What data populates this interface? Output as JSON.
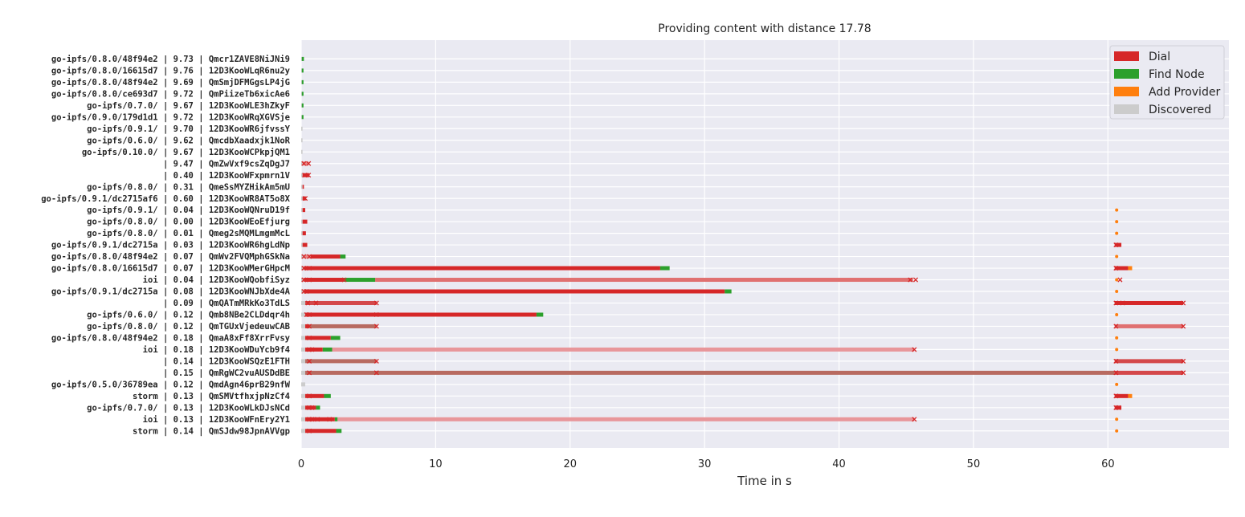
{
  "chart_data": {
    "type": "bar",
    "title": "Providing content with distance 17.78",
    "xlabel": "Time in s",
    "xlim": [
      0,
      69
    ],
    "xticks": [
      0,
      10,
      20,
      30,
      40,
      50,
      60
    ],
    "grid": true,
    "legend_position": "top-right",
    "legend": [
      {
        "label": "Dial",
        "color": "#d62728"
      },
      {
        "label": "Find Node",
        "color": "#2ca02c"
      },
      {
        "label": "Add Provider",
        "color": "#ff7f0e"
      },
      {
        "label": "Discovered",
        "color": "#cccccc"
      }
    ],
    "rows": [
      {
        "label": "go-ipfs/0.8.0/48f94e2 | 9.73 | Qmcr1ZAVE8NiJNi9",
        "discovered": [
          0.0,
          0.05
        ],
        "dials": [],
        "find_node": [
          [
            0.05,
            0.2
          ]
        ],
        "dial_fail": [],
        "add_provider": []
      },
      {
        "label": "go-ipfs/0.8.0/16615d7 | 9.76 | 12D3KooWLqR6nu2y",
        "discovered": [
          0.0,
          0.05
        ],
        "dials": [],
        "find_node": [
          [
            0.05,
            0.15
          ]
        ],
        "dial_fail": [],
        "add_provider": []
      },
      {
        "label": "go-ipfs/0.8.0/48f94e2 | 9.69 | QmSmjDFMGgsLP4jG",
        "discovered": [
          0.0,
          0.05
        ],
        "dials": [],
        "find_node": [
          [
            0.05,
            0.15
          ]
        ],
        "dial_fail": [],
        "add_provider": []
      },
      {
        "label": "go-ipfs/0.8.0/ce693d7 | 9.72 | QmPiizeTb6xicAe6",
        "discovered": [
          0.0,
          0.05
        ],
        "dials": [],
        "find_node": [
          [
            0.05,
            0.12
          ]
        ],
        "dial_fail": [],
        "add_provider": []
      },
      {
        "label": "go-ipfs/0.7.0/ | 9.67 | 12D3KooWLE3hZkyF",
        "discovered": [
          0.0,
          0.05
        ],
        "dials": [],
        "find_node": [
          [
            0.05,
            0.12
          ]
        ],
        "dial_fail": [],
        "add_provider": []
      },
      {
        "label": "go-ipfs/0.9.0/179d1d1 | 9.72 | 12D3KooWRqXGVSje",
        "discovered": [
          0.0,
          0.05
        ],
        "dials": [],
        "find_node": [
          [
            0.05,
            0.12
          ]
        ],
        "dial_fail": [],
        "add_provider": []
      },
      {
        "label": "go-ipfs/0.9.1/ | 9.70 | 12D3KooWR6jfvssY",
        "discovered": [
          0.0,
          0.1
        ],
        "dials": [],
        "find_node": [],
        "dial_fail": [],
        "add_provider": []
      },
      {
        "label": "go-ipfs/0.6.0/ | 9.62 | QmcdbXaadxjk1NoR",
        "discovered": [
          0.0,
          0.1
        ],
        "dials": [],
        "find_node": [],
        "dial_fail": [],
        "add_provider": []
      },
      {
        "label": "go-ipfs/0.10.0/ | 9.67 | 12D3KooWCPkpjQM1",
        "discovered": [
          0.0,
          0.1
        ],
        "dials": [],
        "find_node": [],
        "dial_fail": [],
        "add_provider": []
      },
      {
        "label": " | 9.47 | QmZwVxf9csZqDgJ7",
        "discovered": [
          0.0,
          0.1
        ],
        "dials": [
          [
            0.1,
            0.3,
            "#e88a8a"
          ],
          [
            0.3,
            0.55,
            "#e88a8a"
          ]
        ],
        "find_node": [],
        "dial_fail": [
          0.2,
          0.55
        ],
        "add_provider": []
      },
      {
        "label": " | 0.40 | 12D3KooWFxpmrn1V",
        "discovered": [
          0.0,
          0.1
        ],
        "dials": [
          [
            0.1,
            0.6,
            "#d62728"
          ]
        ],
        "find_node": [],
        "dial_fail": [
          0.25,
          0.55
        ],
        "add_provider": []
      },
      {
        "label": "go-ipfs/0.8.0/ | 0.31 | QmeSsMYZHikAm5mU",
        "discovered": [
          0.0,
          0.1
        ],
        "dials": [
          [
            0.1,
            0.2,
            "#d62728"
          ]
        ],
        "find_node": [],
        "dial_fail": [],
        "add_provider": []
      },
      {
        "label": "go-ipfs/0.9.1/dc2715af6 | 0.60 | 12D3KooWR8AT5o8X",
        "discovered": [
          0.0,
          0.1
        ],
        "dials": [
          [
            0.1,
            0.35,
            "#d62728"
          ]
        ],
        "find_node": [],
        "dial_fail": [
          0.3
        ],
        "add_provider": []
      },
      {
        "label": "go-ipfs/0.9.1/ | 0.04 | 12D3KooWQNruD19f",
        "discovered": [
          0.0,
          0.1
        ],
        "dials": [
          [
            0.1,
            0.3,
            "#d62728"
          ]
        ],
        "find_node": [],
        "dial_fail": [],
        "add_provider": [
          [
            60.6,
            60.7
          ]
        ]
      },
      {
        "label": "go-ipfs/0.8.0/ | 0.00 | 12D3KooWEoEfjurg",
        "discovered": [
          0.0,
          0.1
        ],
        "dials": [
          [
            0.1,
            0.45,
            "#d62728"
          ]
        ],
        "find_node": [],
        "dial_fail": [],
        "add_provider": [
          [
            60.6,
            60.7
          ]
        ]
      },
      {
        "label": "go-ipfs/0.8.0/ | 0.01 | Qmeg2sMQMLmgmMcL",
        "discovered": [
          0.0,
          0.1
        ],
        "dials": [
          [
            0.1,
            0.35,
            "#d62728"
          ]
        ],
        "find_node": [],
        "dial_fail": [],
        "add_provider": [
          [
            60.6,
            60.7
          ]
        ]
      },
      {
        "label": "go-ipfs/0.9.1/dc2715a | 0.03 | 12D3KooWR6hgLdNp",
        "discovered": [
          0.0,
          0.1
        ],
        "dials": [
          [
            0.1,
            0.45,
            "#d62728"
          ],
          [
            60.5,
            61.0,
            "#d62728"
          ]
        ],
        "find_node": [],
        "dial_fail": [
          60.6
        ],
        "add_provider": []
      },
      {
        "label": "go-ipfs/0.8.0/48f94e2 | 0.07 | QmWv2FVQMphGSkNa",
        "discovered": [
          0.0,
          0.2
        ],
        "dials": [
          [
            0.2,
            0.7,
            "#e88a8a"
          ],
          [
            0.7,
            2.9,
            "#d62728"
          ]
        ],
        "find_node": [
          [
            2.9,
            3.3
          ]
        ],
        "dial_fail": [
          0.2,
          0.6
        ],
        "add_provider": [
          [
            60.6,
            60.7
          ]
        ]
      },
      {
        "label": "go-ipfs/0.8.0/16615d7 | 0.07 | 12D3KooWMerGHpcM",
        "discovered": [
          0.0,
          0.2
        ],
        "dials": [
          [
            0.2,
            26.7,
            "#d62728"
          ],
          [
            60.5,
            61.5,
            "#d62728"
          ]
        ],
        "find_node": [
          [
            26.7,
            27.4
          ]
        ],
        "dial_fail": [
          0.2,
          0.6,
          60.6
        ],
        "add_provider": [
          [
            61.5,
            61.8
          ]
        ]
      },
      {
        "label": "ioi | 0.04 | 12D3KooWQobfiSyz",
        "discovered": [
          0.0,
          0.2
        ],
        "dials": [
          [
            0.2,
            3.2,
            "#d62728"
          ],
          [
            5.5,
            45.5,
            "#e07070"
          ]
        ],
        "find_node": [
          [
            3.2,
            5.5
          ]
        ],
        "dial_fail": [
          0.2,
          0.6,
          3.2,
          45.3,
          45.7,
          60.9
        ],
        "add_provider": [
          [
            60.6,
            60.7
          ]
        ]
      },
      {
        "label": "go-ipfs/0.9.1/dc2715a | 0.08 | 12D3KooWNJbXde4A",
        "discovered": [
          0.0,
          0.2
        ],
        "dials": [
          [
            0.2,
            31.5,
            "#d62728"
          ]
        ],
        "find_node": [
          [
            31.5,
            32.0
          ]
        ],
        "dial_fail": [
          0.2,
          0.4
        ],
        "add_provider": [
          [
            60.6,
            60.7
          ]
        ]
      },
      {
        "label": " | 0.09 | QmQATmMRkKo3TdLS",
        "discovered": [
          0.0,
          0.3
        ],
        "dials": [
          [
            0.3,
            5.6,
            "#d4484a"
          ],
          [
            60.5,
            65.6,
            "#d62728"
          ]
        ],
        "find_node": [],
        "dial_fail": [
          0.5,
          1.1,
          5.6,
          60.6,
          61.1,
          65.6
        ],
        "add_provider": []
      },
      {
        "label": "go-ipfs/0.6.0/ | 0.12 | Qmb8NBe2CLDdqr4h",
        "discovered": [
          0.0,
          0.3
        ],
        "dials": [
          [
            0.3,
            17.5,
            "#d62728"
          ]
        ],
        "find_node": [
          [
            17.5,
            18.0
          ]
        ],
        "dial_fail": [
          0.4,
          0.6,
          5.6
        ],
        "add_provider": [
          [
            60.6,
            60.7
          ]
        ]
      },
      {
        "label": "go-ipfs/0.8.0/ | 0.12 | QmTGUxVjedeuwCAB",
        "discovered": [
          0.0,
          0.3
        ],
        "dials": [
          [
            0.3,
            0.6,
            "#d62728"
          ],
          [
            0.6,
            5.6,
            "#b86a60"
          ],
          [
            60.5,
            65.6,
            "#e07070"
          ]
        ],
        "find_node": [],
        "dial_fail": [
          0.6,
          5.6,
          60.6,
          65.6
        ],
        "add_provider": []
      },
      {
        "label": "go-ipfs/0.8.0/48f94e2 | 0.18 | QmaA8xFf8XrrFvsy",
        "discovered": [
          0.0,
          0.3
        ],
        "dials": [
          [
            0.3,
            2.2,
            "#d62728"
          ]
        ],
        "find_node": [
          [
            2.2,
            2.9
          ]
        ],
        "dial_fail": [
          0.6
        ],
        "add_provider": [
          [
            60.6,
            60.7
          ]
        ]
      },
      {
        "label": "ioi | 0.18 | 12D3KooWDuYcb9f4",
        "discovered": [
          0.0,
          0.3
        ],
        "dials": [
          [
            0.3,
            1.6,
            "#d62728"
          ],
          [
            2.3,
            45.6,
            "#e8969a"
          ]
        ],
        "find_node": [
          [
            1.6,
            2.3
          ]
        ],
        "dial_fail": [
          0.6,
          0.8,
          45.6
        ],
        "add_provider": [
          [
            60.6,
            60.7
          ]
        ]
      },
      {
        "label": " | 0.14 | 12D3KooWSQzE1FTH",
        "discovered": [
          0.0,
          0.3
        ],
        "dials": [
          [
            0.3,
            5.6,
            "#b86a60"
          ],
          [
            60.5,
            65.6,
            "#d4484a"
          ]
        ],
        "find_node": [],
        "dial_fail": [
          0.6,
          5.6,
          60.6,
          65.6
        ],
        "add_provider": []
      },
      {
        "label": " | 0.15 | QmRgWC2vuAUSDdBE",
        "discovered": [
          0.0,
          0.3
        ],
        "dials": [
          [
            0.3,
            60.5,
            "#b86a60"
          ],
          [
            60.5,
            65.6,
            "#d4484a"
          ]
        ],
        "find_node": [],
        "dial_fail": [
          0.6,
          5.6,
          60.6,
          65.6
        ],
        "add_provider": []
      },
      {
        "label": "go-ipfs/0.5.0/36789ea | 0.12 | QmdAgn46prB29nfW",
        "discovered": [
          0.0,
          0.3
        ],
        "dials": [],
        "find_node": [],
        "dial_fail": [],
        "add_provider": [
          [
            60.6,
            60.7
          ]
        ]
      },
      {
        "label": "storm | 0.13 | QmSMVtfhxjpNzCf4",
        "discovered": [
          0.0,
          0.3
        ],
        "dials": [
          [
            0.3,
            1.7,
            "#d62728"
          ],
          [
            60.5,
            61.5,
            "#d62728"
          ]
        ],
        "find_node": [
          [
            1.7,
            2.2
          ]
        ],
        "dial_fail": [
          0.6,
          60.6
        ],
        "add_provider": [
          [
            61.5,
            61.8
          ]
        ]
      },
      {
        "label": "go-ipfs/0.7.0/ | 0.13 | 12D3KooWLkDJsNCd",
        "discovered": [
          0.0,
          0.3
        ],
        "dials": [
          [
            0.3,
            1.1,
            "#d62728"
          ],
          [
            60.5,
            61.0,
            "#d62728"
          ]
        ],
        "find_node": [
          [
            1.1,
            1.4
          ]
        ],
        "dial_fail": [
          0.6,
          0.8,
          60.6,
          60.8
        ],
        "add_provider": []
      },
      {
        "label": "ioi | 0.13 | 12D3KooWFnEry2Y1",
        "discovered": [
          0.0,
          0.3
        ],
        "dials": [
          [
            0.3,
            2.5,
            "#d62728"
          ],
          [
            2.7,
            45.6,
            "#e8969a"
          ]
        ],
        "find_node": [
          [
            2.5,
            2.7
          ]
        ],
        "dial_fail": [
          0.6,
          0.8,
          1.2,
          2.1,
          45.6
        ],
        "add_provider": [
          [
            60.6,
            60.7
          ]
        ]
      },
      {
        "label": "storm | 0.14 | QmSJdw98JpnAVVgp",
        "discovered": [
          0.0,
          0.3
        ],
        "dials": [
          [
            0.3,
            2.6,
            "#d62728"
          ]
        ],
        "find_node": [
          [
            2.6,
            3.0
          ]
        ],
        "dial_fail": [
          0.6
        ],
        "add_provider": [
          [
            60.6,
            60.7
          ]
        ]
      }
    ]
  }
}
